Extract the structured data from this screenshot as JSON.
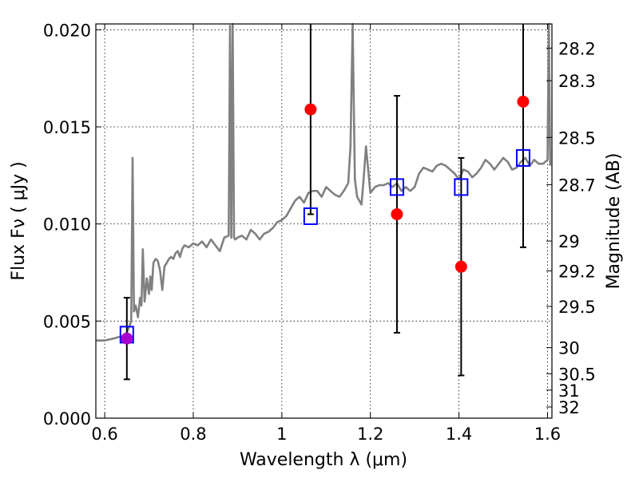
{
  "chart_data": {
    "type": "scatter",
    "title": "",
    "xlabel": "Wavelength  λ (μm)",
    "ylabel": "Flux  Fν  ( μJy )",
    "ylabel_right": "Magnitude (AB)",
    "xlim": [
      0.58,
      1.61
    ],
    "ylim": [
      0.0,
      0.0203
    ],
    "grid": true,
    "xticks": [
      {
        "value": 0.6,
        "label": "0.6"
      },
      {
        "value": 0.8,
        "label": "0.8"
      },
      {
        "value": 1.0,
        "label": "1"
      },
      {
        "value": 1.2,
        "label": "1.2"
      },
      {
        "value": 1.4,
        "label": "1.4"
      },
      {
        "value": 1.6,
        "label": "1.6"
      }
    ],
    "yticks": [
      {
        "value": 0.0,
        "label": "0.000"
      },
      {
        "value": 0.005,
        "label": "0.005"
      },
      {
        "value": 0.01,
        "label": "0.010"
      },
      {
        "value": 0.015,
        "label": "0.015"
      },
      {
        "value": 0.02,
        "label": "0.020"
      }
    ],
    "yticks_right": [
      {
        "value": 28.2,
        "label": "28.2"
      },
      {
        "value": 28.3,
        "label": "28.3"
      },
      {
        "value": 28.5,
        "label": "28.5"
      },
      {
        "value": 28.7,
        "label": "28.7"
      },
      {
        "value": 29.0,
        "label": "29"
      },
      {
        "value": 29.2,
        "label": "29.2"
      },
      {
        "value": 29.5,
        "label": "29.5"
      },
      {
        "value": 30.0,
        "label": "30"
      },
      {
        "value": 30.5,
        "label": "30.5"
      },
      {
        "value": 31.0,
        "label": "31"
      },
      {
        "value": 32.0,
        "label": "32"
      }
    ],
    "series": [
      {
        "kind": "line",
        "color": "#808080",
        "x": [
          0.58,
          0.6,
          0.62,
          0.635,
          0.645,
          0.65,
          0.655,
          0.66,
          0.663,
          0.666,
          0.67,
          0.675,
          0.68,
          0.683,
          0.686,
          0.69,
          0.695,
          0.7,
          0.703,
          0.706,
          0.71,
          0.715,
          0.72,
          0.725,
          0.73,
          0.735,
          0.74,
          0.745,
          0.75,
          0.755,
          0.76,
          0.765,
          0.77,
          0.775,
          0.78,
          0.79,
          0.8,
          0.81,
          0.82,
          0.83,
          0.84,
          0.85,
          0.86,
          0.87,
          0.88,
          0.883,
          0.886,
          0.889,
          0.892,
          0.895,
          0.9,
          0.91,
          0.92,
          0.93,
          0.94,
          0.95,
          0.96,
          0.97,
          0.98,
          0.99,
          1.0,
          1.01,
          1.02,
          1.03,
          1.04,
          1.05,
          1.06,
          1.07,
          1.08,
          1.09,
          1.1,
          1.11,
          1.12,
          1.13,
          1.14,
          1.15,
          1.155,
          1.16,
          1.165,
          1.17,
          1.18,
          1.185,
          1.19,
          1.2,
          1.21,
          1.22,
          1.23,
          1.24,
          1.25,
          1.26,
          1.27,
          1.28,
          1.29,
          1.3,
          1.31,
          1.32,
          1.33,
          1.34,
          1.35,
          1.36,
          1.37,
          1.38,
          1.39,
          1.4,
          1.41,
          1.42,
          1.43,
          1.44,
          1.45,
          1.46,
          1.47,
          1.48,
          1.49,
          1.5,
          1.51,
          1.52,
          1.53,
          1.54,
          1.55,
          1.56,
          1.57,
          1.58,
          1.59,
          1.6,
          1.603,
          1.606
        ],
        "y": [
          0.004,
          0.004,
          0.0041,
          0.0042,
          0.0041,
          0.0044,
          0.0047,
          0.005,
          0.0134,
          0.0055,
          0.0058,
          0.0052,
          0.0062,
          0.0058,
          0.0087,
          0.006,
          0.0072,
          0.0064,
          0.0073,
          0.0066,
          0.008,
          0.0082,
          0.0081,
          0.0076,
          0.0066,
          0.0078,
          0.008,
          0.0082,
          0.0083,
          0.0082,
          0.0085,
          0.0086,
          0.0083,
          0.0087,
          0.0089,
          0.0088,
          0.009,
          0.0089,
          0.0091,
          0.0088,
          0.0092,
          0.0089,
          0.0086,
          0.0093,
          0.0094,
          0.0202,
          0.0093,
          0.0203,
          0.0093,
          0.0092,
          0.0093,
          0.0094,
          0.0092,
          0.0097,
          0.0095,
          0.0092,
          0.0095,
          0.0096,
          0.0098,
          0.0101,
          0.0102,
          0.0104,
          0.0108,
          0.0112,
          0.0114,
          0.0111,
          0.0116,
          0.0117,
          0.0117,
          0.0114,
          0.0119,
          0.0117,
          0.0115,
          0.0114,
          0.0117,
          0.0121,
          0.014,
          0.0203,
          0.0123,
          0.0114,
          0.011,
          0.0124,
          0.014,
          0.0116,
          0.0119,
          0.012,
          0.012,
          0.0121,
          0.0119,
          0.0121,
          0.0117,
          0.0119,
          0.0117,
          0.0119,
          0.0126,
          0.0129,
          0.0128,
          0.0127,
          0.013,
          0.0131,
          0.013,
          0.0128,
          0.0126,
          0.0123,
          0.0128,
          0.0127,
          0.0124,
          0.0126,
          0.0129,
          0.0133,
          0.0131,
          0.0128,
          0.0131,
          0.0134,
          0.0132,
          0.0128,
          0.0129,
          0.0132,
          0.0134,
          0.013,
          0.0133,
          0.0131,
          0.0131,
          0.0133,
          0.0203,
          0.013
        ]
      },
      {
        "kind": "markers",
        "marker": "open-square",
        "color": "#0000ff",
        "x": [
          0.65,
          1.065,
          1.26,
          1.405,
          1.545
        ],
        "y": [
          0.0043,
          0.0104,
          0.0119,
          0.0119,
          0.0134
        ]
      },
      {
        "kind": "markers-with-errorbars",
        "marker": "filled-circle",
        "color": "#ff0000",
        "x": [
          0.65,
          1.065,
          1.26,
          1.405,
          1.545
        ],
        "y": [
          0.0041,
          0.0159,
          0.0105,
          0.0078,
          0.0163
        ],
        "yerr_low": [
          0.002,
          0.0105,
          0.0044,
          0.0022,
          0.0088
        ],
        "yerr_high": [
          0.0062,
          0.0203,
          0.0166,
          0.0134,
          0.0203
        ],
        "point_colors": [
          "#aa00cc",
          "#ff0000",
          "#ff0000",
          "#ff0000",
          "#ff0000"
        ]
      }
    ]
  }
}
